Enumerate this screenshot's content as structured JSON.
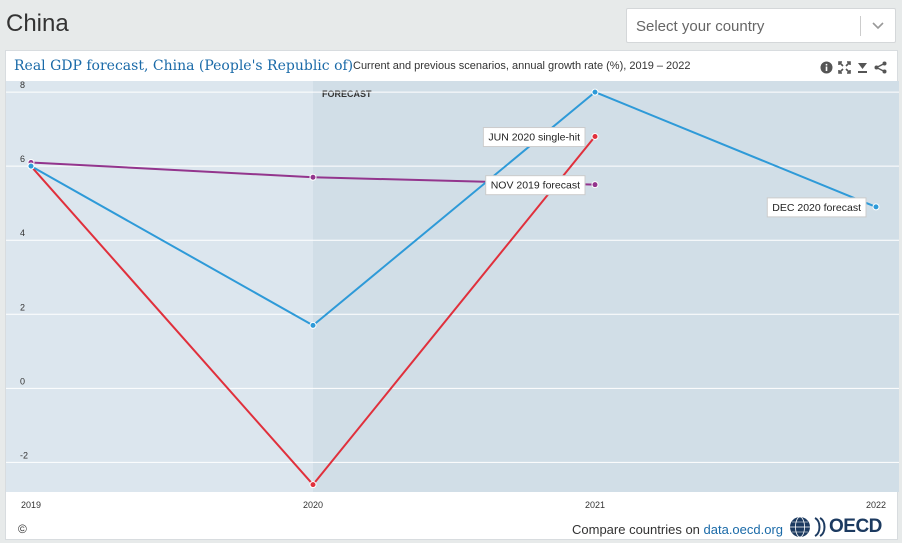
{
  "page": {
    "title": "China"
  },
  "country_select": {
    "placeholder": "Select your country",
    "icon": "chevron-down-icon"
  },
  "chart_header": {
    "title": "Real GDP forecast, China (People's Republic of)",
    "subtitle": "Current and previous scenarios, annual growth rate (%), 2019 – 2022",
    "tools": [
      "info-icon",
      "fullscreen-icon",
      "download-icon",
      "share-icon"
    ]
  },
  "chart_data": {
    "type": "line",
    "x": [
      "2019",
      "2020",
      "2021",
      "2022"
    ],
    "ylim": [
      -2.8,
      8.3
    ],
    "yticks": [
      8,
      6,
      4,
      2,
      0,
      -2
    ],
    "ytick_labels": [
      "8",
      "6",
      "4",
      "2",
      "0",
      "-2"
    ],
    "grid": true,
    "forecast_band": {
      "label": "FORECAST",
      "from": "2020"
    },
    "series": [
      {
        "name": "NOV 2019 forecast",
        "color": "#93358d",
        "values": [
          6.1,
          5.7,
          5.5,
          null
        ]
      },
      {
        "name": "JUN 2020 single-hit",
        "color": "#e0303c",
        "values": [
          6.0,
          -2.6,
          6.8,
          null
        ]
      },
      {
        "name": "DEC 2020 forecast",
        "color": "#2e9ad8",
        "values": [
          6.0,
          1.7,
          8.0,
          4.9
        ]
      }
    ]
  },
  "colors": {
    "band_history": "#dce6ee",
    "band_forecast": "#d1dee7",
    "title": "#1a6aa8"
  },
  "footer": {
    "copyright": "©",
    "compare_text": "Compare countries on ",
    "compare_link": "data.oecd.org",
    "logo_text": "OECD"
  }
}
